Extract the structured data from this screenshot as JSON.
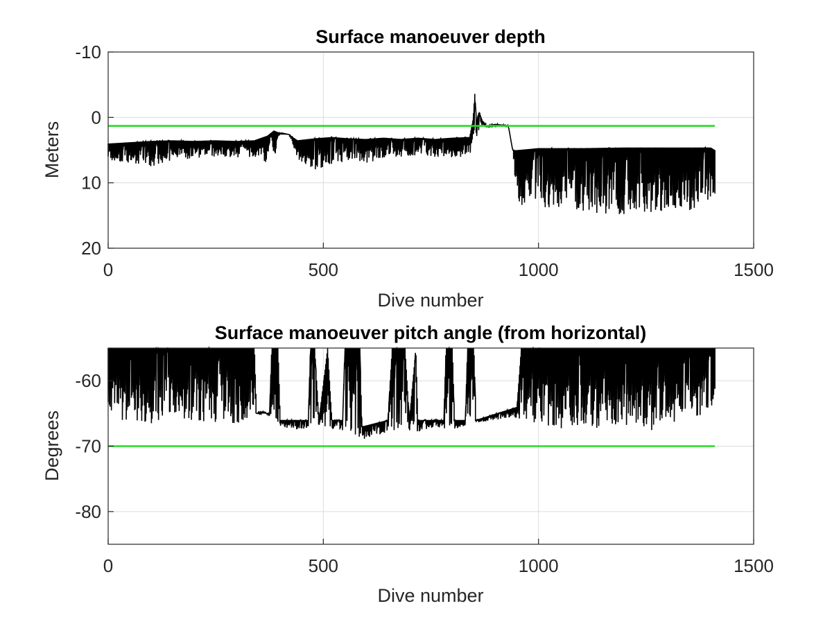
{
  "chart_data": [
    {
      "type": "line",
      "title": "Surface manoeuver depth",
      "xlabel": "Dive number",
      "ylabel": "Meters",
      "xlim": [
        0,
        1500
      ],
      "ylim": [
        -10,
        20
      ],
      "y_reversed": true,
      "xticks": [
        "0",
        "500",
        "1000",
        "1500"
      ],
      "yticks": [
        "-10",
        "0",
        "10",
        "20"
      ],
      "grid": true,
      "colors": {
        "series": "#000000",
        "threshold": "#22dd22"
      },
      "series": [
        {
          "style": "upper envelope (shallowest) of spiky trace",
          "x": [
            0,
            50,
            100,
            150,
            200,
            250,
            300,
            340,
            370,
            380,
            385,
            400,
            420,
            440,
            480,
            520,
            560,
            600,
            640,
            680,
            720,
            760,
            800,
            840,
            848,
            852,
            856,
            862,
            870,
            880,
            900,
            930,
            940,
            950,
            1000,
            1100,
            1200,
            1300,
            1400,
            1410
          ],
          "y": [
            4,
            3.8,
            3.6,
            3.5,
            3.6,
            3.5,
            3.6,
            3.5,
            2.8,
            2.3,
            2.0,
            2.4,
            2.6,
            3.5,
            3.2,
            3.0,
            3.2,
            3.3,
            3.1,
            3.3,
            3.1,
            3.3,
            3.1,
            3.0,
            0.3,
            -3.6,
            0.5,
            -0.9,
            0.5,
            1.3,
            1.0,
            1.2,
            5.0,
            5.0,
            4.7,
            4.7,
            4.6,
            4.6,
            4.6,
            5.0
          ]
        },
        {
          "style": "lower envelope (deepest) of spiky trace",
          "x": [
            0,
            50,
            100,
            150,
            200,
            250,
            300,
            340,
            370,
            380,
            385,
            400,
            420,
            440,
            480,
            520,
            560,
            600,
            640,
            680,
            720,
            760,
            800,
            840,
            848,
            852,
            856,
            862,
            870,
            880,
            900,
            930,
            940,
            950,
            1000,
            1100,
            1200,
            1300,
            1400,
            1410
          ],
          "y": [
            6.5,
            7.0,
            7.5,
            6.5,
            6.3,
            6.0,
            6.2,
            6.0,
            7.0,
            3.0,
            6.5,
            2.5,
            2.6,
            6.5,
            8.0,
            7.5,
            6.5,
            7.0,
            6.3,
            6.0,
            6.3,
            6.0,
            6.3,
            6.0,
            3.0,
            2.0,
            3.0,
            2.0,
            1.5,
            1.5,
            1.5,
            1.5,
            5.0,
            13.5,
            14.0,
            14.5,
            15.0,
            14.5,
            14.0,
            12.5
          ]
        },
        {
          "name": "",
          "style": "threshold",
          "x": [
            0,
            1410
          ],
          "y": [
            1.3,
            1.3
          ]
        }
      ]
    },
    {
      "type": "line",
      "title": "Surface manoeuver pitch angle (from horizontal)",
      "xlabel": "Dive number",
      "ylabel": "Degrees",
      "xlim": [
        0,
        1500
      ],
      "ylim": [
        -85,
        -55
      ],
      "xticks": [
        "0",
        "500",
        "1000",
        "1500"
      ],
      "yticks": [
        "-60",
        "-70",
        "-80"
      ],
      "grid": true,
      "colors": {
        "series": "#000000",
        "threshold": "#22dd22"
      },
      "series": [
        {
          "style": "upper envelope of spiky trace (clipped at top of axes)",
          "x": [
            0,
            340,
            345,
            375,
            380,
            395,
            400,
            465,
            470,
            480,
            490,
            510,
            520,
            545,
            550,
            585,
            590,
            650,
            660,
            690,
            700,
            715,
            720,
            780,
            785,
            800,
            805,
            830,
            835,
            850,
            855,
            950,
            960,
            1410
          ],
          "y": [
            -55,
            -55,
            -65,
            -65,
            -55,
            -55,
            -66,
            -66,
            -55,
            -55,
            -66,
            -55,
            -66,
            -66,
            -55,
            -55,
            -67,
            -66,
            -55,
            -55,
            -66,
            -55,
            -66,
            -66,
            -55,
            -55,
            -66,
            -66,
            -55,
            -55,
            -66,
            -64,
            -55,
            -55
          ]
        },
        {
          "style": "lower envelope of spiky trace",
          "x": [
            0,
            100,
            200,
            300,
            360,
            400,
            440,
            480,
            520,
            560,
            600,
            640,
            680,
            720,
            760,
            800,
            850,
            900,
            940,
            960,
            1000,
            1100,
            1200,
            1250,
            1260,
            1270,
            1300,
            1400,
            1410
          ],
          "y": [
            -66,
            -66.5,
            -66.3,
            -66.5,
            -64.5,
            -67,
            -67.5,
            -67,
            -67.5,
            -68,
            -69,
            -68,
            -67.5,
            -67.8,
            -67,
            -67.5,
            -66.5,
            -66,
            -65.5,
            -66,
            -67,
            -67.5,
            -67,
            -67,
            -69.5,
            -67,
            -66.5,
            -65,
            -62
          ]
        },
        {
          "name": "",
          "style": "threshold",
          "x": [
            0,
            1410
          ],
          "y": [
            -70,
            -70
          ]
        }
      ]
    }
  ]
}
